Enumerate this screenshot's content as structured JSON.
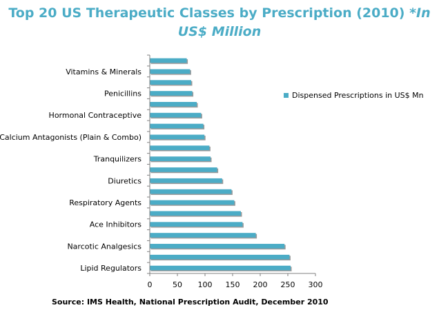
{
  "header": {
    "title_main": "Top 20 US Therapeutic Classes by Prescription (2010)",
    "title_italic": "*In",
    "title_line2": "US$ Million"
  },
  "source": "Source: IMS Health, National Prescription Audit, December 2010",
  "colors": {
    "bar": "#4bacc6",
    "bar_shadow": "#9a9a9a",
    "axis": "#7f7f7f",
    "title": "#4bacc6"
  },
  "chart_data": {
    "type": "bar",
    "orientation": "horizontal",
    "categories": [
      "Lipid Regulators",
      "",
      "Narcotic Analgesics",
      "",
      "Ace Inhibitors",
      "",
      "Respiratory Agents",
      "",
      "Diuretics",
      "",
      "Tranquilizers",
      "",
      "Calcium Antagonists (Plain & Combo)",
      "",
      "Hormonal Contraceptive",
      "",
      "Penicillins",
      "",
      "Vitamins & Minerals",
      ""
    ],
    "series": [
      {
        "name": "Dispensed Prescriptions in US$ Mn",
        "values": [
          255,
          253,
          244,
          192,
          168,
          165,
          153,
          148,
          131,
          122,
          110,
          108,
          99,
          97,
          93,
          85,
          77,
          75,
          73,
          67
        ]
      }
    ],
    "xlim": [
      0,
      300
    ],
    "xticks": [
      0,
      50,
      100,
      150,
      200,
      250,
      300
    ],
    "legend_position": "right",
    "grid": false
  }
}
